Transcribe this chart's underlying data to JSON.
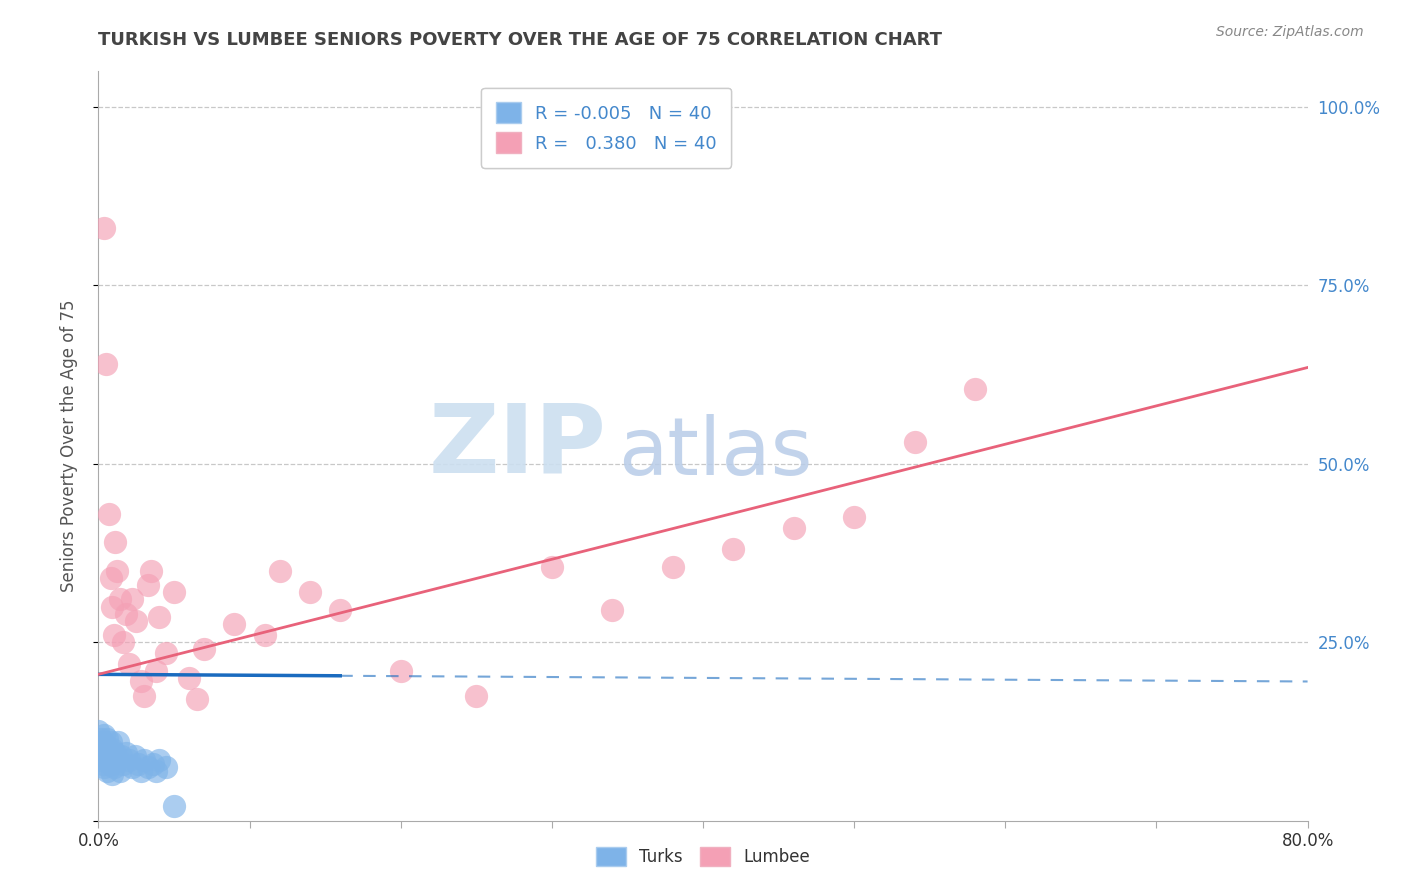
{
  "title": "TURKISH VS LUMBEE SENIORS POVERTY OVER THE AGE OF 75 CORRELATION CHART",
  "source": "Source: ZipAtlas.com",
  "ylabel": "Seniors Poverty Over the Age of 75",
  "xlim": [
    0.0,
    0.8
  ],
  "ylim": [
    0.0,
    1.05
  ],
  "ytick_positions": [
    0.0,
    0.25,
    0.5,
    0.75,
    1.0
  ],
  "ytick_labels": [
    "",
    "25.0%",
    "50.0%",
    "75.0%",
    "100.0%"
  ],
  "xtick_positions": [
    0.0,
    0.1,
    0.2,
    0.3,
    0.4,
    0.5,
    0.6,
    0.7,
    0.8
  ],
  "xtick_labels": [
    "0.0%",
    "",
    "",
    "",
    "",
    "",
    "",
    "",
    "80.0%"
  ],
  "legend_r_turks": "-0.005",
  "legend_r_lumbee": "0.380",
  "legend_n": "40",
  "turks_color": "#7eb3e8",
  "lumbee_color": "#f4a0b5",
  "turks_line_color": "#1a6bbf",
  "lumbee_line_color": "#e8627a",
  "grid_color": "#c8c8c8",
  "watermark_zip_color": "#c8dff5",
  "watermark_atlas_color": "#b8cce8",
  "title_color": "#444444",
  "source_color": "#888888",
  "label_color_blue": "#4488cc",
  "turks_x": [
    0.0,
    0.001,
    0.001,
    0.002,
    0.002,
    0.003,
    0.003,
    0.004,
    0.004,
    0.005,
    0.005,
    0.006,
    0.006,
    0.007,
    0.007,
    0.008,
    0.008,
    0.009,
    0.009,
    0.01,
    0.01,
    0.011,
    0.012,
    0.013,
    0.014,
    0.015,
    0.016,
    0.018,
    0.02,
    0.022,
    0.024,
    0.026,
    0.028,
    0.03,
    0.033,
    0.036,
    0.038,
    0.04,
    0.045,
    0.05
  ],
  "turks_y": [
    0.125,
    0.1,
    0.085,
    0.095,
    0.115,
    0.08,
    0.11,
    0.075,
    0.12,
    0.09,
    0.105,
    0.07,
    0.115,
    0.085,
    0.095,
    0.08,
    0.11,
    0.065,
    0.1,
    0.09,
    0.075,
    0.095,
    0.085,
    0.11,
    0.07,
    0.09,
    0.08,
    0.095,
    0.085,
    0.075,
    0.09,
    0.08,
    0.07,
    0.085,
    0.075,
    0.08,
    0.07,
    0.085,
    0.075,
    0.02
  ],
  "lumbee_x": [
    0.004,
    0.005,
    0.007,
    0.008,
    0.009,
    0.01,
    0.011,
    0.012,
    0.014,
    0.016,
    0.018,
    0.02,
    0.022,
    0.025,
    0.028,
    0.03,
    0.033,
    0.035,
    0.038,
    0.04,
    0.045,
    0.05,
    0.06,
    0.065,
    0.07,
    0.09,
    0.11,
    0.12,
    0.14,
    0.16,
    0.2,
    0.25,
    0.3,
    0.34,
    0.38,
    0.42,
    0.46,
    0.5,
    0.54,
    0.58
  ],
  "lumbee_y": [
    0.83,
    0.64,
    0.43,
    0.34,
    0.3,
    0.26,
    0.39,
    0.35,
    0.31,
    0.25,
    0.29,
    0.22,
    0.31,
    0.28,
    0.195,
    0.175,
    0.33,
    0.35,
    0.21,
    0.285,
    0.235,
    0.32,
    0.2,
    0.17,
    0.24,
    0.275,
    0.26,
    0.35,
    0.32,
    0.295,
    0.21,
    0.175,
    0.355,
    0.295,
    0.355,
    0.38,
    0.41,
    0.425,
    0.53,
    0.605
  ],
  "turks_line_y_start": 0.205,
  "turks_line_y_end": 0.195,
  "lumbee_line_y_start": 0.205,
  "lumbee_line_y_end": 0.635
}
